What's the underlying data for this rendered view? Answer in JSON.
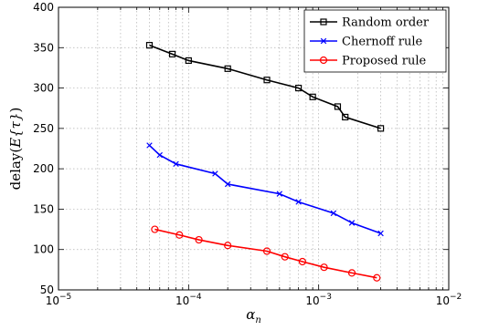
{
  "chart_data": {
    "type": "line",
    "xscale": "log",
    "xlim": [
      1e-05,
      0.01
    ],
    "ylim": [
      50,
      400
    ],
    "xlabel": "α",
    "xlabel_sub": "n",
    "ylabel_prefix": "delay",
    "ylabel_math": "E{τ}",
    "grid": true,
    "legend_position": "top-right",
    "x_ticks": [
      {
        "value": 1e-05,
        "base": "10",
        "exp": "−5"
      },
      {
        "value": 0.0001,
        "base": "10",
        "exp": "−4"
      },
      {
        "value": 0.001,
        "base": "10",
        "exp": "−3"
      },
      {
        "value": 0.01,
        "base": "10",
        "exp": "−2"
      }
    ],
    "y_ticks": [
      {
        "value": 50,
        "label": "50"
      },
      {
        "value": 100,
        "label": "100"
      },
      {
        "value": 150,
        "label": "150"
      },
      {
        "value": 200,
        "label": "200"
      },
      {
        "value": 250,
        "label": "250"
      },
      {
        "value": 300,
        "label": "300"
      },
      {
        "value": 350,
        "label": "350"
      },
      {
        "value": 400,
        "label": "400"
      }
    ],
    "series": [
      {
        "name": "Random order",
        "color": "#000000",
        "marker": "square",
        "x": [
          5e-05,
          7.5e-05,
          0.0001,
          0.0002,
          0.0004,
          0.0007,
          0.0009,
          0.0014,
          0.0016,
          0.003
        ],
        "y": [
          353,
          342,
          334,
          324,
          310,
          300,
          289,
          277,
          264,
          250
        ]
      },
      {
        "name": "Chernoff rule",
        "color": "#0000ff",
        "marker": "x",
        "x": [
          5e-05,
          6e-05,
          8e-05,
          0.00016,
          0.0002,
          0.0005,
          0.0007,
          0.0013,
          0.0018,
          0.003
        ],
        "y": [
          229,
          217,
          206,
          194,
          181,
          169,
          159,
          145,
          133,
          120
        ]
      },
      {
        "name": "Proposed rule",
        "color": "#ff0000",
        "marker": "circle",
        "x": [
          5.5e-05,
          8.5e-05,
          0.00012,
          0.0002,
          0.0004,
          0.00055,
          0.00075,
          0.0011,
          0.0018,
          0.0028
        ],
        "y": [
          125,
          118,
          112,
          105,
          98,
          91,
          85,
          78,
          71,
          65
        ]
      }
    ]
  }
}
